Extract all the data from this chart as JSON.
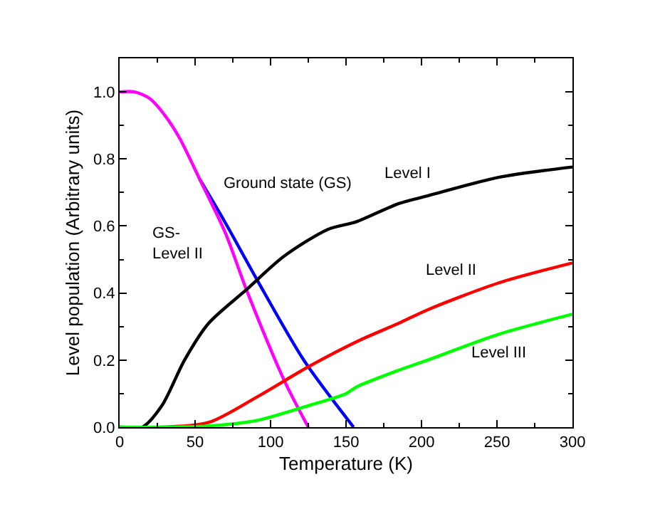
{
  "chart_data": {
    "type": "line",
    "xlabel": "Temperature (K)",
    "ylabel": "Level population (Arbitrary units)",
    "xlim": [
      0,
      300
    ],
    "ylim": [
      0,
      1.1
    ],
    "xticks": [
      0,
      50,
      100,
      150,
      200,
      250,
      300
    ],
    "yticks": [
      {
        "value": 0,
        "label": "0.0"
      },
      {
        "value": 0.2,
        "label": "0.2"
      },
      {
        "value": 0.4,
        "label": "0.4"
      },
      {
        "value": 0.6,
        "label": "0.6"
      },
      {
        "value": 0.8,
        "label": "0.8"
      },
      {
        "value": 1.0,
        "label": "1.0"
      }
    ],
    "legend": false,
    "marker": "none",
    "line_style": "solid",
    "series": [
      {
        "name": "Ground state (GS)",
        "color": "#0000ff",
        "x": [
          53,
          70,
          91,
          122,
          155
        ],
        "values": [
          0.74,
          0.61,
          0.44,
          0.2,
          0
        ]
      },
      {
        "name": "GS-\nLevel II",
        "color": "#ff00ff",
        "x": [
          0,
          10,
          20,
          30,
          40,
          53,
          70,
          84,
          109,
          125
        ],
        "values": [
          1.0,
          1.0,
          0.98,
          0.93,
          0.86,
          0.74,
          0.58,
          0.41,
          0.14,
          0
        ]
      },
      {
        "name": "Level I",
        "color": "#000000",
        "x": [
          0,
          15,
          28,
          43,
          59,
          84,
          109,
          138,
          157,
          185,
          204,
          251,
          300
        ],
        "values": [
          0,
          0,
          0.064,
          0.2,
          0.31,
          0.41,
          0.51,
          0.59,
          0.613,
          0.667,
          0.69,
          0.745,
          0.776
        ]
      },
      {
        "name": "Level II",
        "color": "#ff0000",
        "x": [
          0,
          28,
          59,
          91,
          125,
          157,
          185,
          204,
          251,
          300
        ],
        "values": [
          0,
          0,
          0.014,
          0.09,
          0.18,
          0.255,
          0.31,
          0.35,
          0.43,
          0.49
        ]
      },
      {
        "name": "Level III",
        "color": "#00ff00",
        "x": [
          0,
          28,
          60,
          91,
          125,
          150,
          157,
          185,
          204,
          251,
          300
        ],
        "values": [
          0,
          0,
          0.004,
          0.02,
          0.064,
          0.1,
          0.12,
          0.17,
          0.2,
          0.277,
          0.337
        ]
      }
    ]
  }
}
